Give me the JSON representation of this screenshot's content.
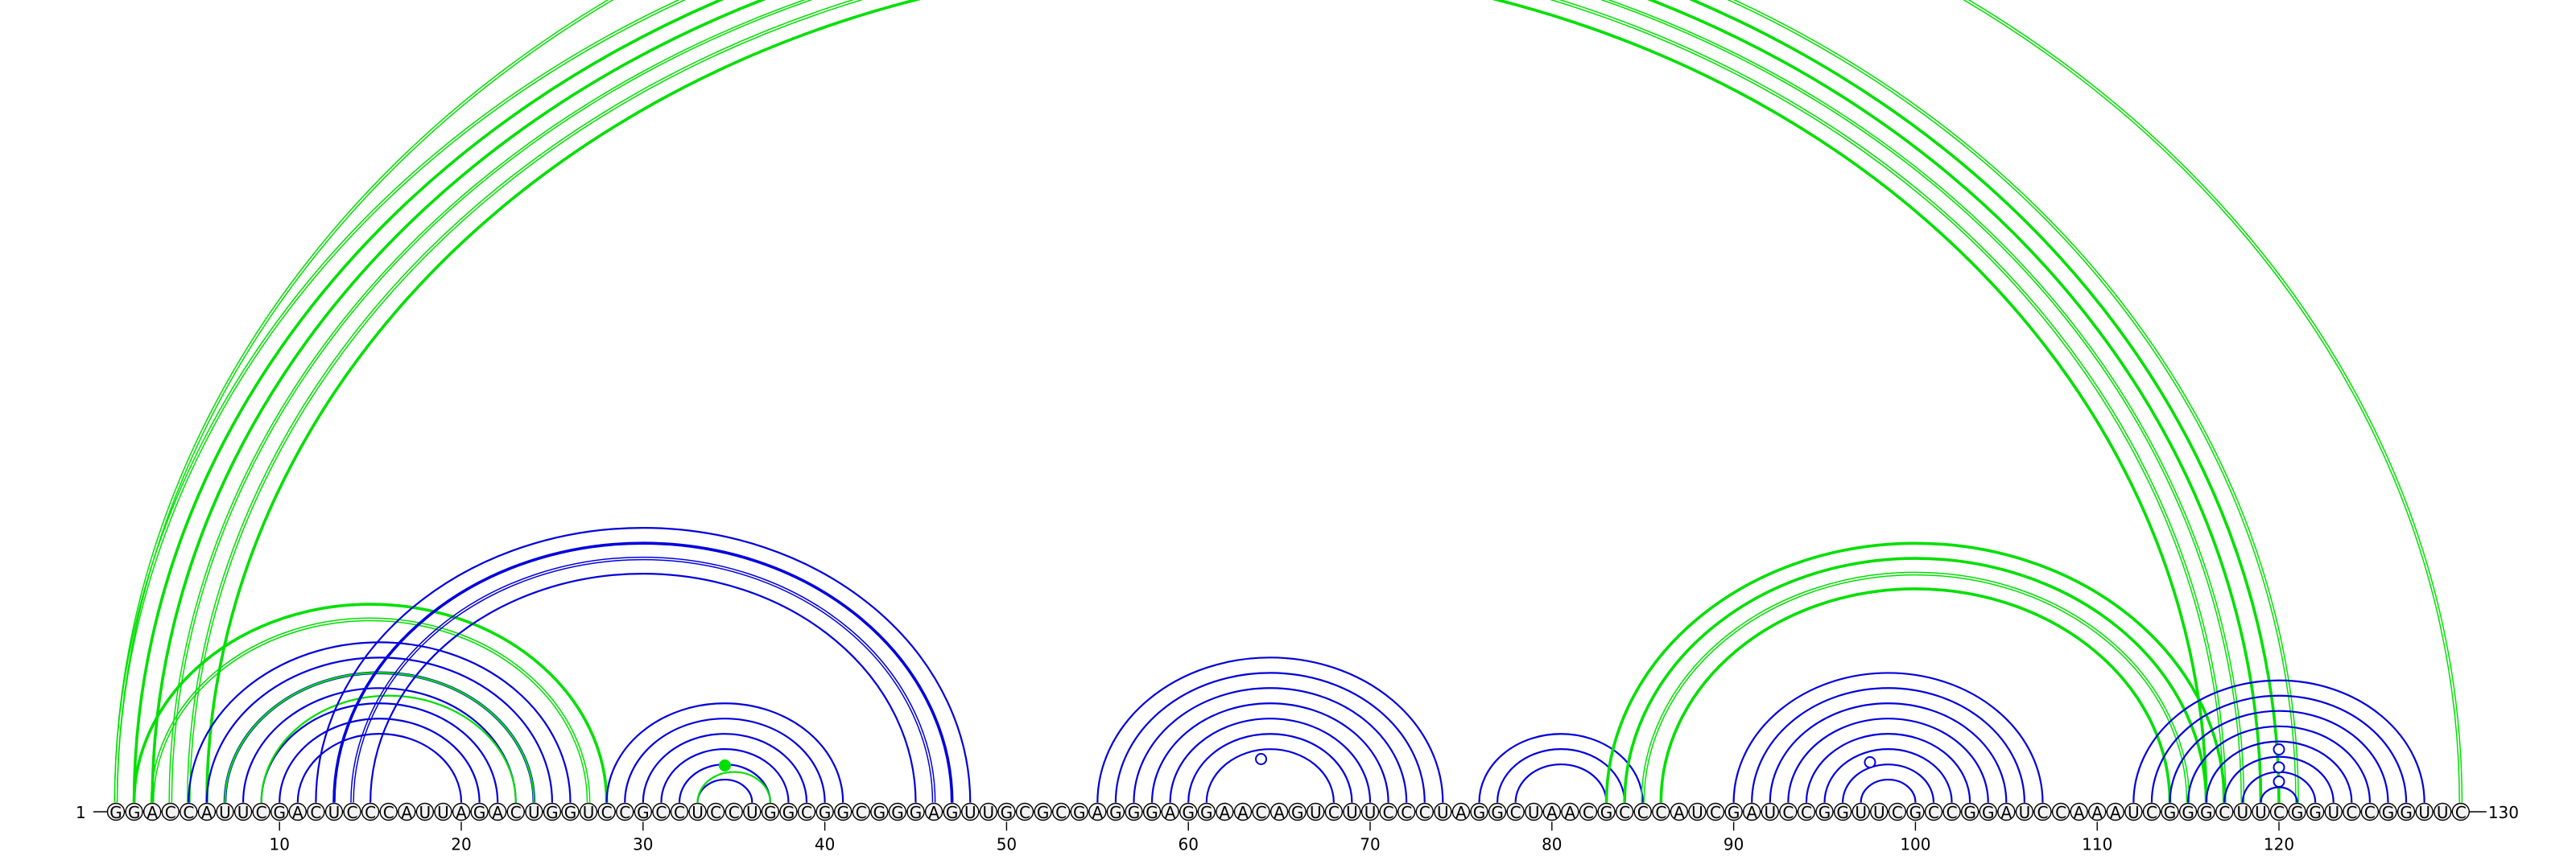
{
  "chart_data": {
    "type": "arc-diagram",
    "title": "",
    "sequence": "GGACCAUUCGACUCCCAUUAGACUGGUCCGCCUCCUGGCGGCGGGAGUUGCGCGAGGGAGGAACAGUCUUCCCUAGGCUAACGCCCAUCGAUCCGGUUCGCCGGAUCCAAAUCGGGCUUCGGUCCGGUUC",
    "start_label": "1",
    "end_label": "130",
    "ticks": [
      10,
      20,
      30,
      40,
      50,
      60,
      70,
      80,
      90,
      100,
      110,
      120
    ],
    "colors": {
      "blue": "#0000dd",
      "green": "#00e000",
      "backbone": "#000000"
    },
    "arcs": [
      {
        "i": 1,
        "j": 121,
        "color": "green",
        "style": "double"
      },
      {
        "i": 2,
        "j": 120,
        "color": "green",
        "style": "thick"
      },
      {
        "i": 3,
        "j": 119,
        "color": "green",
        "style": "thick"
      },
      {
        "i": 4,
        "j": 118,
        "color": "green",
        "style": "double"
      },
      {
        "i": 5,
        "j": 117,
        "color": "green",
        "style": "double"
      },
      {
        "i": 6,
        "j": 116,
        "color": "green",
        "style": "thick"
      },
      {
        "i": 1,
        "j": 130,
        "color": "green",
        "style": "double"
      },
      {
        "i": 2,
        "j": 28,
        "color": "green",
        "style": "thick"
      },
      {
        "i": 3,
        "j": 27,
        "color": "green",
        "style": "double"
      },
      {
        "i": 5,
        "j": 26,
        "color": "blue",
        "style": "single"
      },
      {
        "i": 6,
        "j": 25,
        "color": "blue",
        "style": "single"
      },
      {
        "i": 7,
        "j": 24,
        "color": "blue",
        "style": "thick"
      },
      {
        "i": 8,
        "j": 23,
        "color": "blue",
        "style": "single"
      },
      {
        "i": 9,
        "j": 22,
        "color": "blue",
        "style": "single"
      },
      {
        "i": 10,
        "j": 21,
        "color": "blue",
        "style": "single"
      },
      {
        "i": 11,
        "j": 20,
        "color": "blue",
        "style": "single"
      },
      {
        "i": 7,
        "j": 24,
        "color": "green",
        "style": "single"
      },
      {
        "i": 9,
        "j": 23,
        "color": "green",
        "style": "single"
      },
      {
        "i": 12,
        "j": 48,
        "color": "blue",
        "style": "single"
      },
      {
        "i": 13,
        "j": 47,
        "color": "blue",
        "style": "thick"
      },
      {
        "i": 14,
        "j": 46,
        "color": "blue",
        "style": "double"
      },
      {
        "i": 15,
        "j": 45,
        "color": "blue",
        "style": "single"
      },
      {
        "i": 28,
        "j": 41,
        "color": "blue",
        "style": "single"
      },
      {
        "i": 29,
        "j": 40,
        "color": "blue",
        "style": "single"
      },
      {
        "i": 30,
        "j": 39,
        "color": "blue",
        "style": "single"
      },
      {
        "i": 31,
        "j": 38,
        "color": "blue",
        "style": "single"
      },
      {
        "i": 32,
        "j": 37,
        "color": "blue",
        "style": "single"
      },
      {
        "i": 33,
        "j": 36,
        "color": "blue",
        "style": "single"
      },
      {
        "i": 33,
        "j": 37,
        "color": "green",
        "style": "single"
      },
      {
        "i": 55,
        "j": 74,
        "color": "blue",
        "style": "single"
      },
      {
        "i": 56,
        "j": 73,
        "color": "blue",
        "style": "single"
      },
      {
        "i": 57,
        "j": 72,
        "color": "blue",
        "style": "single"
      },
      {
        "i": 58,
        "j": 71,
        "color": "blue",
        "style": "single"
      },
      {
        "i": 59,
        "j": 70,
        "color": "blue",
        "style": "single"
      },
      {
        "i": 60,
        "j": 69,
        "color": "blue",
        "style": "single"
      },
      {
        "i": 61,
        "j": 68,
        "color": "blue",
        "style": "single"
      },
      {
        "i": 76,
        "j": 85,
        "color": "blue",
        "style": "single"
      },
      {
        "i": 77,
        "j": 84,
        "color": "blue",
        "style": "single"
      },
      {
        "i": 78,
        "j": 83,
        "color": "blue",
        "style": "single"
      },
      {
        "i": 83,
        "j": 117,
        "color": "green",
        "style": "thick"
      },
      {
        "i": 84,
        "j": 116,
        "color": "green",
        "style": "thick"
      },
      {
        "i": 85,
        "j": 115,
        "color": "green",
        "style": "double"
      },
      {
        "i": 86,
        "j": 114,
        "color": "green",
        "style": "thick"
      },
      {
        "i": 90,
        "j": 107,
        "color": "blue",
        "style": "single"
      },
      {
        "i": 91,
        "j": 106,
        "color": "blue",
        "style": "single"
      },
      {
        "i": 92,
        "j": 105,
        "color": "blue",
        "style": "single"
      },
      {
        "i": 93,
        "j": 104,
        "color": "blue",
        "style": "single"
      },
      {
        "i": 94,
        "j": 103,
        "color": "blue",
        "style": "single"
      },
      {
        "i": 95,
        "j": 102,
        "color": "blue",
        "style": "single"
      },
      {
        "i": 96,
        "j": 101,
        "color": "blue",
        "style": "single"
      },
      {
        "i": 97,
        "j": 100,
        "color": "blue",
        "style": "single"
      },
      {
        "i": 112,
        "j": 128,
        "color": "blue",
        "style": "single"
      },
      {
        "i": 113,
        "j": 127,
        "color": "blue",
        "style": "single"
      },
      {
        "i": 114,
        "j": 126,
        "color": "blue",
        "style": "single"
      },
      {
        "i": 115,
        "j": 125,
        "color": "blue",
        "style": "single"
      },
      {
        "i": 116,
        "j": 124,
        "color": "blue",
        "style": "single"
      },
      {
        "i": 117,
        "j": 123,
        "color": "blue",
        "style": "single"
      },
      {
        "i": 118,
        "j": 122,
        "color": "blue",
        "style": "single"
      },
      {
        "i": 119,
        "j": 121,
        "color": "blue",
        "style": "single"
      }
    ],
    "markers": [
      {
        "i": 35,
        "color": "green",
        "filled": true,
        "level": 0.35
      },
      {
        "i": 64,
        "color": "blue",
        "filled": false,
        "level": 0.45
      },
      {
        "i": 98,
        "color": "blue",
        "filled": false,
        "level": 0.4
      },
      {
        "i": 120,
        "color": "blue",
        "filled": false,
        "level": 0.1
      },
      {
        "i": 120,
        "color": "blue",
        "filled": false,
        "level": 0.32
      },
      {
        "i": 120,
        "color": "blue",
        "filled": false,
        "level": 0.6
      }
    ]
  }
}
